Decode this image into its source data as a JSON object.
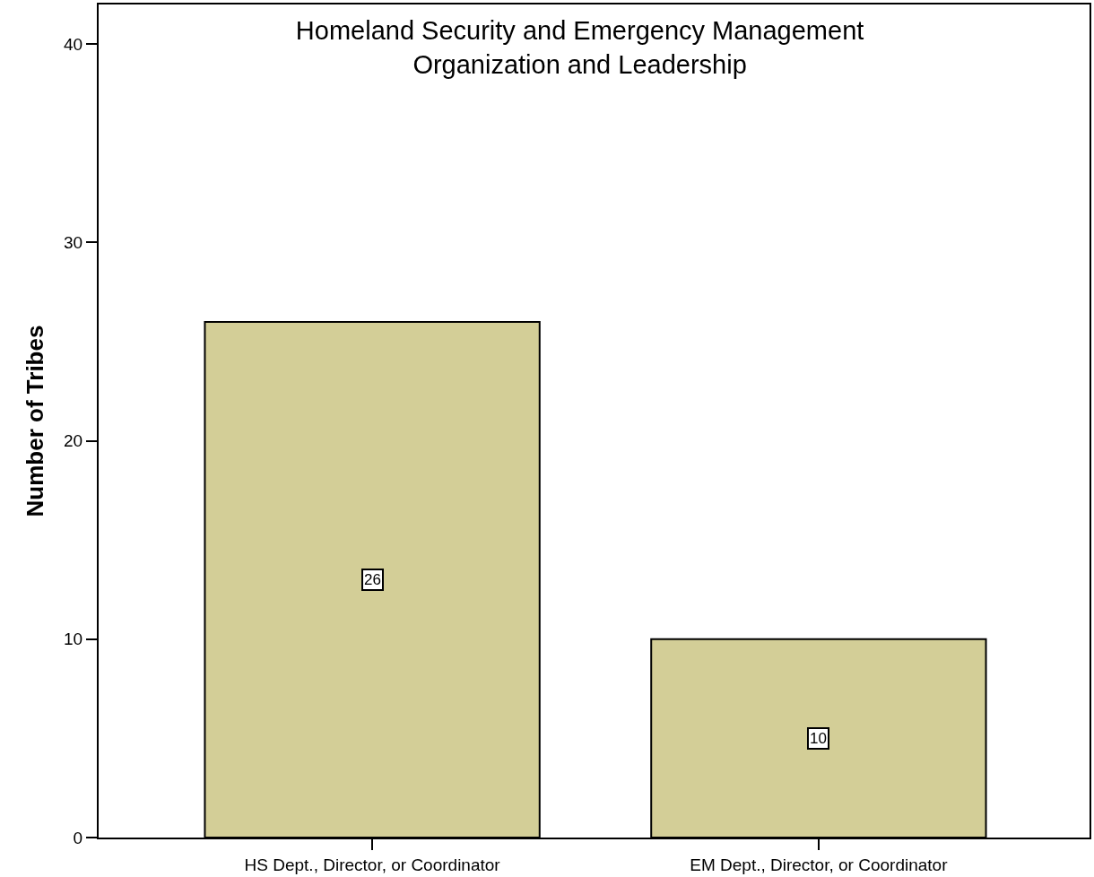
{
  "chart_data": {
    "type": "bar",
    "title": "Homeland Security and Emergency Management\nOrganization and Leadership",
    "ylabel": "Number of Tribes",
    "categories": [
      "HS Dept., Director, or Coordinator",
      "EM Dept., Director, or Coordinator"
    ],
    "values": [
      26,
      10
    ],
    "color": "#d3ce97",
    "ylim": [
      0,
      42
    ],
    "yticks": [
      0,
      10,
      20,
      30,
      40
    ],
    "data_labels": true
  }
}
